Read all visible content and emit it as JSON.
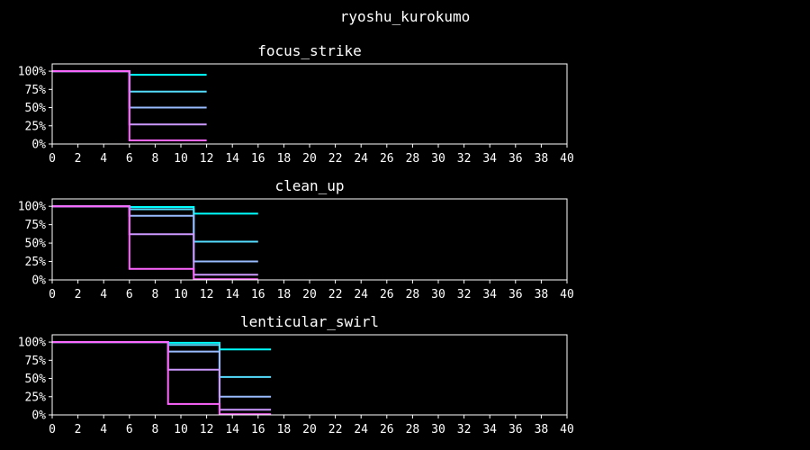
{
  "figure": {
    "title": "ryoshu_kurokumo"
  },
  "colors": [
    "#00ffff",
    "#55ddff",
    "#99bbff",
    "#cc99ff",
    "#ff66ff",
    "#ff22ee"
  ],
  "chart_data": [
    {
      "type": "line",
      "step": true,
      "title": "focus_strike",
      "xlim": [
        0,
        40
      ],
      "ylim": [
        0,
        1.1
      ],
      "xticks": [
        "0",
        "2",
        "4",
        "6",
        "8",
        "10",
        "12",
        "14",
        "16",
        "18",
        "20",
        "22",
        "24",
        "26",
        "28",
        "30",
        "32",
        "34",
        "36",
        "38",
        "40"
      ],
      "yticks": [
        {
          "v": 0,
          "label": "0%"
        },
        {
          "v": 0.25,
          "label": "25%"
        },
        {
          "v": 0.5,
          "label": "50%"
        },
        {
          "v": 0.75,
          "label": "75%"
        },
        {
          "v": 1.0,
          "label": "100%"
        }
      ],
      "series": [
        {
          "x": [
            0,
            6,
            6,
            12
          ],
          "y": [
            1.0,
            1.0,
            0.95,
            0.95
          ]
        },
        {
          "x": [
            0,
            6,
            6,
            12
          ],
          "y": [
            1.0,
            1.0,
            0.72,
            0.72
          ]
        },
        {
          "x": [
            0,
            6,
            6,
            12
          ],
          "y": [
            1.0,
            1.0,
            0.5,
            0.5
          ]
        },
        {
          "x": [
            0,
            6,
            6,
            12
          ],
          "y": [
            1.0,
            1.0,
            0.27,
            0.27
          ]
        },
        {
          "x": [
            0,
            6,
            6,
            12
          ],
          "y": [
            1.0,
            1.0,
            0.05,
            0.05
          ]
        }
      ]
    },
    {
      "type": "line",
      "step": true,
      "title": "clean_up",
      "xlim": [
        0,
        40
      ],
      "ylim": [
        0,
        1.1
      ],
      "xticks": [
        "0",
        "2",
        "4",
        "6",
        "8",
        "10",
        "12",
        "14",
        "16",
        "18",
        "20",
        "22",
        "24",
        "26",
        "28",
        "30",
        "32",
        "34",
        "36",
        "38",
        "40"
      ],
      "yticks": [
        {
          "v": 0,
          "label": "0%"
        },
        {
          "v": 0.25,
          "label": "25%"
        },
        {
          "v": 0.5,
          "label": "50%"
        },
        {
          "v": 0.75,
          "label": "75%"
        },
        {
          "v": 1.0,
          "label": "100%"
        }
      ],
      "series": [
        {
          "x": [
            0,
            6,
            6,
            11,
            11,
            16
          ],
          "y": [
            1.0,
            1.0,
            0.99,
            0.99,
            0.9,
            0.9
          ]
        },
        {
          "x": [
            0,
            6,
            6,
            11,
            11,
            16
          ],
          "y": [
            1.0,
            1.0,
            0.96,
            0.96,
            0.52,
            0.52
          ]
        },
        {
          "x": [
            0,
            6,
            6,
            11,
            11,
            16
          ],
          "y": [
            1.0,
            1.0,
            0.87,
            0.87,
            0.25,
            0.25
          ]
        },
        {
          "x": [
            0,
            6,
            6,
            11,
            11,
            16
          ],
          "y": [
            1.0,
            1.0,
            0.62,
            0.62,
            0.07,
            0.07
          ]
        },
        {
          "x": [
            0,
            6,
            6,
            11,
            11,
            16
          ],
          "y": [
            1.0,
            1.0,
            0.15,
            0.15,
            0.01,
            0.01
          ]
        }
      ]
    },
    {
      "type": "line",
      "step": true,
      "title": "lenticular_swirl",
      "xlim": [
        0,
        40
      ],
      "ylim": [
        0,
        1.1
      ],
      "xticks": [
        "0",
        "2",
        "4",
        "6",
        "8",
        "10",
        "12",
        "14",
        "16",
        "18",
        "20",
        "22",
        "24",
        "26",
        "28",
        "30",
        "32",
        "34",
        "36",
        "38",
        "40"
      ],
      "yticks": [
        {
          "v": 0,
          "label": "0%"
        },
        {
          "v": 0.25,
          "label": "25%"
        },
        {
          "v": 0.5,
          "label": "50%"
        },
        {
          "v": 0.75,
          "label": "75%"
        },
        {
          "v": 1.0,
          "label": "100%"
        }
      ],
      "series": [
        {
          "x": [
            0,
            9,
            9,
            13,
            13,
            17
          ],
          "y": [
            1.0,
            1.0,
            0.99,
            0.99,
            0.9,
            0.9
          ]
        },
        {
          "x": [
            0,
            9,
            9,
            13,
            13,
            17
          ],
          "y": [
            1.0,
            1.0,
            0.96,
            0.96,
            0.52,
            0.52
          ]
        },
        {
          "x": [
            0,
            9,
            9,
            13,
            13,
            17
          ],
          "y": [
            1.0,
            1.0,
            0.87,
            0.87,
            0.25,
            0.25
          ]
        },
        {
          "x": [
            0,
            9,
            9,
            13,
            13,
            17
          ],
          "y": [
            1.0,
            1.0,
            0.62,
            0.62,
            0.07,
            0.07
          ]
        },
        {
          "x": [
            0,
            9,
            9,
            13,
            13,
            17
          ],
          "y": [
            1.0,
            1.0,
            0.15,
            0.15,
            0.01,
            0.01
          ]
        }
      ]
    }
  ]
}
